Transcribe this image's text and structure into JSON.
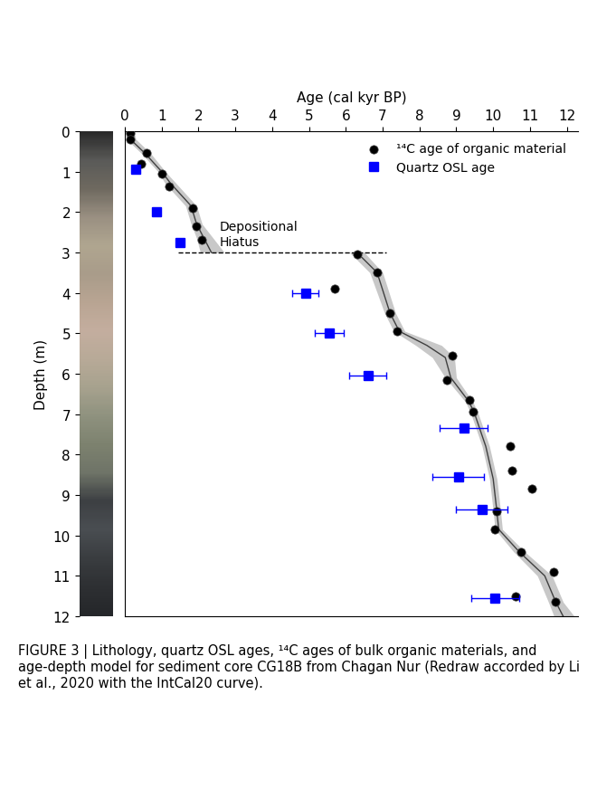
{
  "chart_data": {
    "type": "scatter",
    "xlabel": "Age (cal kyr BP)",
    "ylabel": "Depth (m)",
    "xlim": [
      0,
      12.3
    ],
    "ylim": [
      12,
      0
    ],
    "xticks": [
      0,
      1,
      2,
      3,
      4,
      5,
      6,
      7,
      8,
      9,
      10,
      11,
      12
    ],
    "yticks": [
      0,
      1,
      2,
      3,
      4,
      5,
      6,
      7,
      8,
      9,
      10,
      11,
      12
    ],
    "legend": "upper right",
    "caption": "FIGURE 3 | Lithology, quartz OSL ages, ¹⁴C ages of bulk organic materials, and age-depth model for sediment core CG18B from Chagan Nur (Redraw accorded by Li et al., 2020 with the IntCal20 curve).",
    "series": [
      {
        "name": "¹⁴C age of organic material",
        "color": "#000000",
        "marker": "circle",
        "x": [
          0.15,
          0.15,
          0.6,
          0.45,
          1.0,
          1.2,
          1.85,
          1.95,
          2.1,
          6.3,
          6.85,
          5.7,
          7.2,
          7.4,
          8.9,
          8.75,
          9.35,
          9.45,
          10.45,
          10.5,
          11.05,
          10.1,
          10.05,
          10.75,
          11.65,
          10.6,
          11.7
        ],
        "y": [
          0.05,
          0.2,
          0.55,
          0.8,
          1.05,
          1.36,
          1.9,
          2.35,
          2.68,
          3.05,
          3.5,
          3.9,
          4.5,
          4.95,
          5.55,
          6.15,
          6.65,
          6.95,
          7.8,
          8.4,
          8.85,
          9.4,
          9.85,
          10.4,
          10.9,
          11.5,
          11.65
        ]
      },
      {
        "name": "Quartz OSL age",
        "color": "#0000ff",
        "marker": "square",
        "x": [
          0.3,
          0.85,
          1.5,
          4.9,
          5.55,
          6.6,
          9.2,
          9.05,
          9.7,
          10.05
        ],
        "y": [
          0.95,
          2.0,
          2.75,
          4.0,
          5.0,
          6.05,
          7.35,
          8.55,
          9.35,
          11.55
        ],
        "xerr": [
          0.05,
          0.05,
          0.1,
          0.35,
          0.4,
          0.5,
          0.65,
          0.7,
          0.7,
          0.65
        ]
      }
    ],
    "model": {
      "color": "#404040",
      "band_color": "#c8c8c8",
      "segments": [
        {
          "depth": [
            0,
            0.2,
            0.55,
            1.0,
            1.3,
            1.85,
            2.3,
            2.65,
            3.0
          ],
          "age": [
            0.1,
            0.15,
            0.55,
            1.0,
            1.25,
            1.8,
            1.95,
            2.15,
            2.35
          ],
          "lower": [
            0.0,
            0.05,
            0.45,
            0.9,
            1.1,
            1.65,
            1.8,
            1.95,
            2.05
          ],
          "upper": [
            0.25,
            0.3,
            0.7,
            1.1,
            1.4,
            1.95,
            2.1,
            2.4,
            2.7
          ]
        },
        {
          "depth": [
            3.0,
            3.5,
            4.5,
            4.95,
            5.3,
            5.6,
            6.1,
            6.7,
            7.0,
            7.8,
            8.6,
            9.4,
            9.85,
            10.4,
            11.0,
            11.65,
            12.0
          ],
          "age": [
            6.3,
            6.85,
            7.2,
            7.45,
            8.2,
            8.7,
            8.85,
            9.35,
            9.5,
            9.8,
            10.0,
            10.1,
            10.15,
            10.7,
            11.4,
            11.7,
            11.9
          ],
          "lower": [
            6.1,
            6.65,
            7.05,
            7.3,
            7.9,
            8.35,
            8.7,
            9.25,
            9.4,
            9.7,
            9.9,
            10.0,
            10.05,
            10.55,
            11.2,
            11.5,
            11.65
          ],
          "upper": [
            6.5,
            7.0,
            7.35,
            7.6,
            8.6,
            8.95,
            9.0,
            9.45,
            9.6,
            9.9,
            10.1,
            10.2,
            10.25,
            10.85,
            11.6,
            11.9,
            12.2
          ]
        }
      ]
    },
    "hiatus": {
      "label": "Depositional\nHiatus",
      "depth": 3,
      "age_range": [
        1.45,
        7.1
      ],
      "line_style": "dashed",
      "color": "#000000"
    }
  }
}
